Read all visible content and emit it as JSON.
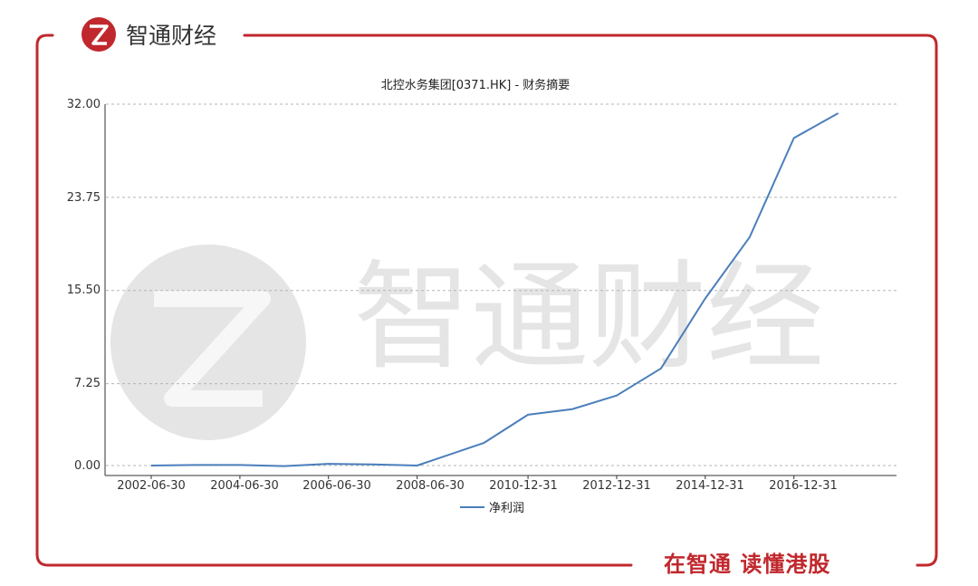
{
  "brand": {
    "name": "智通财经",
    "slogan": "在智通 读懂港股",
    "color": "#c0282d"
  },
  "watermark": {
    "text": "智通财经"
  },
  "chart_data": {
    "type": "line",
    "title": "北控水务集团[0371.HK] - 财务摘要",
    "x_tick_labels": [
      "2002-06-30",
      "2004-06-30",
      "2006-06-30",
      "2008-06-30",
      "2010-12-31",
      "2012-12-31",
      "2014-12-31",
      "2016-12-31"
    ],
    "y_tick_labels": [
      "32.00",
      "23.75",
      "15.50",
      "7.25",
      "0.00"
    ],
    "ylim": [
      0,
      32
    ],
    "grid": true,
    "legend_position": "bottom",
    "series": [
      {
        "name": "净利润",
        "color": "#4a7ebb",
        "x": [
          "2002-06-30",
          "2003-06-30",
          "2004-06-30",
          "2005-06-30",
          "2006-06-30",
          "2007-06-30",
          "2008-06-30",
          "2009-12-31",
          "2010-12-31",
          "2011-12-31",
          "2012-12-31",
          "2013-12-31",
          "2014-12-31",
          "2015-12-31",
          "2016-12-31",
          "2017-12-31"
        ],
        "values": [
          0.0,
          0.05,
          0.05,
          -0.05,
          0.15,
          0.1,
          0.0,
          2.0,
          4.5,
          5.0,
          6.2,
          8.6,
          14.8,
          20.2,
          29.0,
          31.2
        ]
      }
    ]
  }
}
